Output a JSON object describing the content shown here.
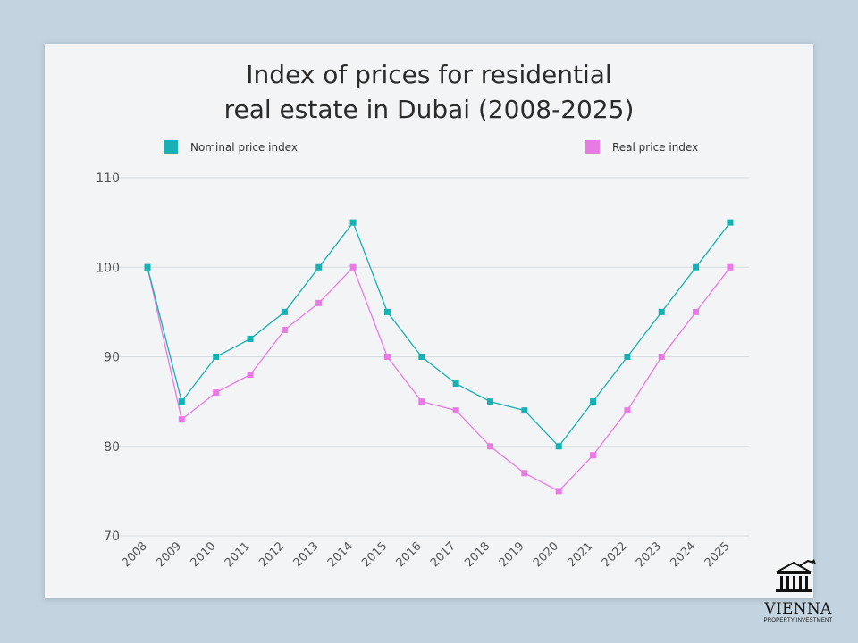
{
  "brand": {
    "name": "VIENNA",
    "subtitle": "PROPERTY INVESTMENT"
  },
  "colors": {
    "nominal": "#17b0b4",
    "real": "#e97ae5",
    "grid": "#d6dbe0",
    "axis_text": "#555555"
  },
  "chart_data": {
    "type": "line",
    "title_line1": "Index of prices for residential",
    "title_line2": "real estate in Dubai (2008-2025)",
    "xlabel": "",
    "ylabel": "",
    "ylim": [
      70,
      110
    ],
    "yticks": [
      70,
      80,
      90,
      100,
      110
    ],
    "ytick_labels": [
      "70",
      "80",
      "90",
      "100",
      "110"
    ],
    "categories": [
      "2008",
      "2009",
      "2010",
      "2011",
      "2012",
      "2013",
      "2014",
      "2015",
      "2016",
      "2017",
      "2018",
      "2019",
      "2020",
      "2021",
      "2022",
      "2023",
      "2024",
      "2025"
    ],
    "legend_position": "top",
    "series": [
      {
        "name": "Nominal price index",
        "key": "nominal",
        "values": [
          100,
          85,
          90,
          92,
          95,
          100,
          105,
          95,
          90,
          87,
          85,
          84,
          80,
          85,
          90,
          95,
          100,
          105
        ]
      },
      {
        "name": "Real price index",
        "key": "real",
        "values": [
          100,
          83,
          86,
          88,
          93,
          96,
          100,
          90,
          85,
          84,
          80,
          77,
          75,
          79,
          84,
          90,
          95,
          100
        ]
      }
    ]
  }
}
